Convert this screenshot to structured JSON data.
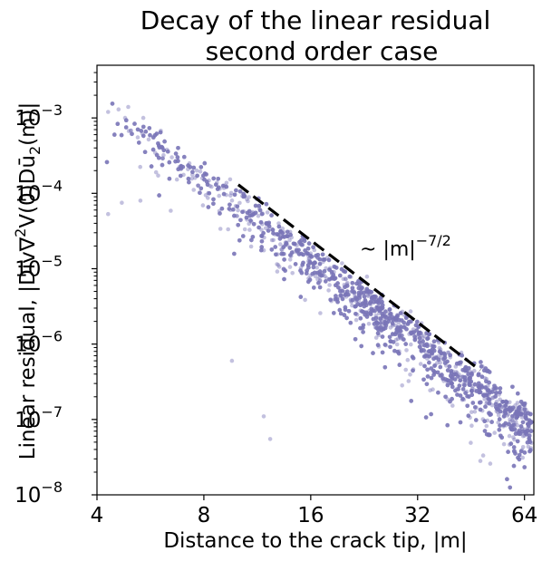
{
  "chart_data": {
    "type": "scatter",
    "title_line1": "Decay of the linear residual",
    "title_line2": "second order case",
    "xlabel": "Distance to the crack tip, |m|",
    "ylabel_text": "Linear residual, |Div∇",
    "ylabel_sup": "2",
    "ylabel_mid": "V(0)Dū",
    "ylabel_sub": "2",
    "ylabel_end": "(m)|",
    "x_scale": "log2",
    "y_scale": "log10",
    "xlim": [
      4.0,
      68.0
    ],
    "ylim": [
      1e-08,
      0.005
    ],
    "x_ticks": [
      {
        "value": 4,
        "label": "4"
      },
      {
        "value": 8,
        "label": "8"
      },
      {
        "value": 16,
        "label": "16"
      },
      {
        "value": 32,
        "label": "32"
      },
      {
        "value": 64,
        "label": "64"
      }
    ],
    "y_ticks": [
      {
        "value": 0.001,
        "base": "10",
        "exp": "−3"
      },
      {
        "value": 0.0001,
        "base": "10",
        "exp": "−4"
      },
      {
        "value": 1e-05,
        "base": "10",
        "exp": "−5"
      },
      {
        "value": 1e-06,
        "base": "10",
        "exp": "−6"
      },
      {
        "value": 1e-07,
        "base": "10",
        "exp": "−7"
      },
      {
        "value": 1e-08,
        "base": "10",
        "exp": "−8"
      }
    ],
    "series": [
      {
        "kind": "scatter",
        "color": "#7b75b8",
        "opacity": 0.45,
        "trend": {
          "x_range": [
            4.2,
            67.0
          ],
          "y_at_x10": 9e-05,
          "slope": -3.5
        },
        "sample_points": [
          [
            4.3,
            0.0012
          ],
          [
            4.3,
            5.3e-05
          ],
          [
            4.6,
            0.0013
          ],
          [
            4.8,
            0.001
          ],
          [
            4.9,
            0.0014
          ],
          [
            4.7,
            7.5e-05
          ],
          [
            5.4,
            0.001
          ],
          [
            5.3,
            8e-05
          ],
          [
            6.5,
            0.0003
          ],
          [
            9.6,
            6e-07
          ],
          [
            11.8,
            1.1e-07
          ],
          [
            12.3,
            5.5e-08
          ],
          [
            60.0,
            1.1e-07
          ],
          [
            64.0,
            1.5e-07
          ]
        ]
      },
      {
        "kind": "reference_line",
        "style": "dashed",
        "color": "#000000",
        "x": [
          10.0,
          48.0
        ],
        "y": [
          0.00013,
          4.5e-07
        ]
      }
    ],
    "annotation": {
      "prefix": "~ |m|",
      "exponent": "−7/2",
      "x": 22.0,
      "y": 1.5e-05
    },
    "grid": false,
    "legend": "none"
  }
}
